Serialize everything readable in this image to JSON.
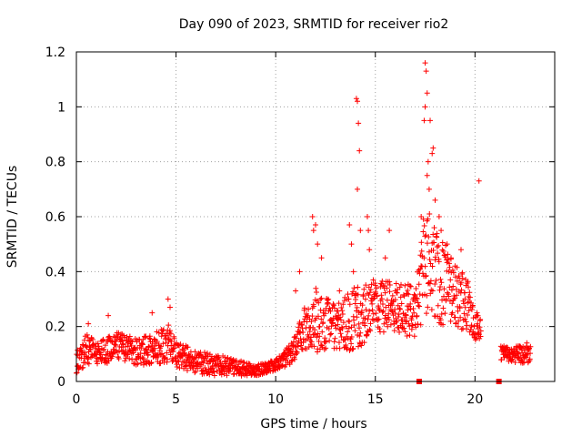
{
  "chart_data": {
    "type": "scatter",
    "title": "Day 090 of 2023, SRMTID for receiver rio2",
    "xlabel": "GPS time / hours",
    "ylabel": "SRMTID / TECUs",
    "xlim": [
      0,
      24
    ],
    "ylim": [
      0,
      1.2
    ],
    "x_ticks": [
      0,
      5,
      10,
      15,
      20
    ],
    "x_tick_labels": [
      "0",
      "5",
      "10",
      "15",
      "20"
    ],
    "y_ticks": [
      0,
      0.2,
      0.4,
      0.6,
      0.8,
      1.0,
      1.2
    ],
    "y_tick_labels": [
      "0",
      "0.2",
      "0.4",
      "0.6",
      "0.8",
      "1",
      "1.2"
    ],
    "grid": true,
    "marker": "+",
    "color": "#ff0000",
    "series": [
      {
        "name": "rio2",
        "trend": [
          {
            "x": 0.0,
            "y": 0.07,
            "spread": 0.04
          },
          {
            "x": 0.5,
            "y": 0.12,
            "spread": 0.06
          },
          {
            "x": 1.0,
            "y": 0.1,
            "spread": 0.04
          },
          {
            "x": 1.5,
            "y": 0.11,
            "spread": 0.05
          },
          {
            "x": 2.0,
            "y": 0.13,
            "spread": 0.05
          },
          {
            "x": 3.0,
            "y": 0.11,
            "spread": 0.05
          },
          {
            "x": 4.0,
            "y": 0.12,
            "spread": 0.06
          },
          {
            "x": 4.6,
            "y": 0.14,
            "spread": 0.07
          },
          {
            "x": 5.0,
            "y": 0.1,
            "spread": 0.05
          },
          {
            "x": 6.0,
            "y": 0.07,
            "spread": 0.04
          },
          {
            "x": 7.0,
            "y": 0.06,
            "spread": 0.04
          },
          {
            "x": 8.0,
            "y": 0.05,
            "spread": 0.03
          },
          {
            "x": 9.0,
            "y": 0.04,
            "spread": 0.02
          },
          {
            "x": 10.0,
            "y": 0.06,
            "spread": 0.02
          },
          {
            "x": 10.8,
            "y": 0.1,
            "spread": 0.04
          },
          {
            "x": 11.5,
            "y": 0.2,
            "spread": 0.08
          },
          {
            "x": 12.0,
            "y": 0.22,
            "spread": 0.12
          },
          {
            "x": 13.0,
            "y": 0.2,
            "spread": 0.08
          },
          {
            "x": 14.0,
            "y": 0.23,
            "spread": 0.12
          },
          {
            "x": 15.0,
            "y": 0.28,
            "spread": 0.1
          },
          {
            "x": 16.0,
            "y": 0.27,
            "spread": 0.09
          },
          {
            "x": 17.0,
            "y": 0.25,
            "spread": 0.1
          },
          {
            "x": 17.5,
            "y": 0.45,
            "spread": 0.2
          },
          {
            "x": 18.0,
            "y": 0.38,
            "spread": 0.18
          },
          {
            "x": 19.0,
            "y": 0.32,
            "spread": 0.12
          },
          {
            "x": 19.6,
            "y": 0.28,
            "spread": 0.1
          },
          {
            "x": 20.0,
            "y": 0.2,
            "spread": 0.05
          },
          {
            "x": 20.3,
            "y": 0.19,
            "spread": 0.04
          }
        ],
        "segments": [
          [
            0.0,
            20.3
          ],
          [
            21.3,
            22.8
          ]
        ],
        "tail": [
          {
            "x": 21.3,
            "y": 0.1,
            "spread": 0.03
          },
          {
            "x": 22.0,
            "y": 0.1,
            "spread": 0.03
          },
          {
            "x": 22.8,
            "y": 0.1,
            "spread": 0.04
          }
        ],
        "peaks": [
          {
            "x": 0.6,
            "y": 0.21
          },
          {
            "x": 1.6,
            "y": 0.24
          },
          {
            "x": 3.8,
            "y": 0.25
          },
          {
            "x": 4.6,
            "y": 0.3
          },
          {
            "x": 4.7,
            "y": 0.27
          },
          {
            "x": 11.0,
            "y": 0.33
          },
          {
            "x": 11.2,
            "y": 0.4
          },
          {
            "x": 11.85,
            "y": 0.6
          },
          {
            "x": 11.9,
            "y": 0.55
          },
          {
            "x": 12.0,
            "y": 0.57
          },
          {
            "x": 12.1,
            "y": 0.5
          },
          {
            "x": 12.3,
            "y": 0.45
          },
          {
            "x": 13.2,
            "y": 0.33
          },
          {
            "x": 13.7,
            "y": 0.57
          },
          {
            "x": 13.8,
            "y": 0.5
          },
          {
            "x": 13.9,
            "y": 0.4
          },
          {
            "x": 14.05,
            "y": 1.03
          },
          {
            "x": 14.1,
            "y": 1.02
          },
          {
            "x": 14.15,
            "y": 0.94
          },
          {
            "x": 14.2,
            "y": 0.84
          },
          {
            "x": 14.1,
            "y": 0.7
          },
          {
            "x": 14.25,
            "y": 0.55
          },
          {
            "x": 14.6,
            "y": 0.6
          },
          {
            "x": 14.65,
            "y": 0.55
          },
          {
            "x": 14.7,
            "y": 0.48
          },
          {
            "x": 15.0,
            "y": 0.35
          },
          {
            "x": 15.5,
            "y": 0.45
          },
          {
            "x": 15.7,
            "y": 0.55
          },
          {
            "x": 16.0,
            "y": 0.33
          },
          {
            "x": 16.6,
            "y": 0.32
          },
          {
            "x": 17.3,
            "y": 0.6
          },
          {
            "x": 17.45,
            "y": 0.95
          },
          {
            "x": 17.5,
            "y": 1.16
          },
          {
            "x": 17.55,
            "y": 1.13
          },
          {
            "x": 17.6,
            "y": 1.05
          },
          {
            "x": 17.5,
            "y": 1.0
          },
          {
            "x": 17.65,
            "y": 0.8
          },
          {
            "x": 17.75,
            "y": 0.95
          },
          {
            "x": 17.85,
            "y": 0.83
          },
          {
            "x": 17.9,
            "y": 0.85
          },
          {
            "x": 17.7,
            "y": 0.7
          },
          {
            "x": 17.6,
            "y": 0.75
          },
          {
            "x": 18.0,
            "y": 0.66
          },
          {
            "x": 18.2,
            "y": 0.6
          },
          {
            "x": 18.3,
            "y": 0.55
          },
          {
            "x": 18.6,
            "y": 0.5
          },
          {
            "x": 18.8,
            "y": 0.45
          },
          {
            "x": 19.0,
            "y": 0.42
          },
          {
            "x": 19.3,
            "y": 0.48
          },
          {
            "x": 19.5,
            "y": 0.3
          },
          {
            "x": 20.2,
            "y": 0.73
          },
          {
            "x": 20.1,
            "y": 0.25
          },
          {
            "x": 22.6,
            "y": 0.14
          }
        ],
        "squares": [
          {
            "x": 17.2,
            "y": 0.0
          },
          {
            "x": 21.2,
            "y": 0.0
          }
        ]
      }
    ]
  }
}
